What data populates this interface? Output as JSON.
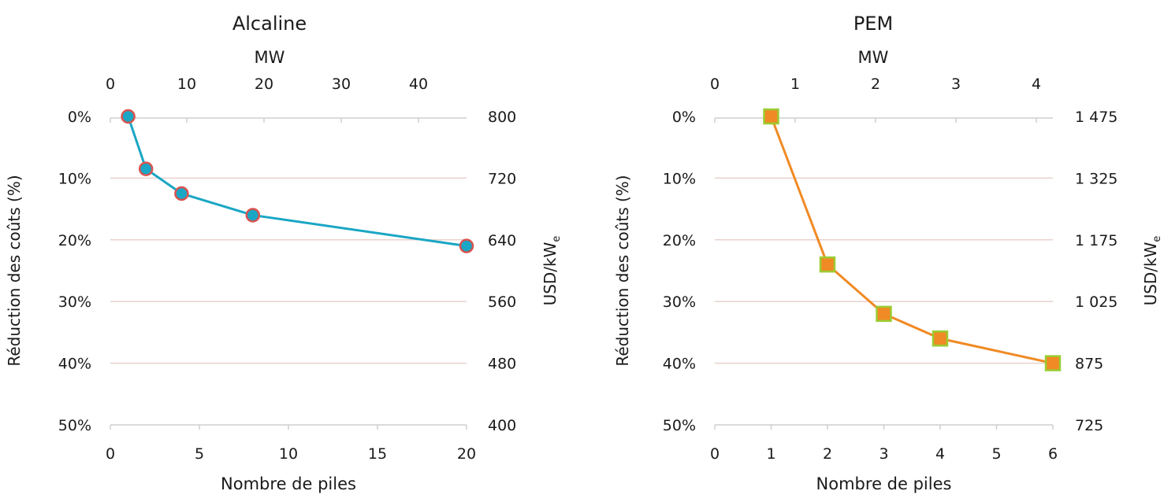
{
  "chart_data": [
    {
      "type": "line",
      "title": "Alcaline",
      "xlabel": "Nombre de piles",
      "xlim": [
        0,
        20
      ],
      "x_ticks": [
        "0",
        "5",
        "10",
        "15",
        "20"
      ],
      "top_axis_label": "MW",
      "top_axis_ticks": [
        "0",
        "10",
        "20",
        "30",
        "40"
      ],
      "ylabel": "Réduction des coûts (%)",
      "y_ticks": [
        "0%",
        "10%",
        "20%",
        "30%",
        "40%",
        "50%"
      ],
      "ylim": [
        0,
        50
      ],
      "y_inverted": true,
      "right_axis_label": "USD/kW",
      "right_axis_label_sub": "e",
      "right_axis_ticks": [
        "800",
        "720",
        "640",
        "560",
        "480",
        "400"
      ],
      "grid": "horizontal",
      "line_color": "#1aa6c4",
      "marker": "circle",
      "marker_edge_color": "#d9534f",
      "series": [
        {
          "x": [
            1,
            2,
            4,
            8,
            20
          ],
          "values": [
            0,
            8.5,
            12.5,
            16,
            21
          ]
        }
      ]
    },
    {
      "type": "line",
      "title": "PEM",
      "xlabel": "Nombre de piles",
      "xlim": [
        0,
        6
      ],
      "x_ticks": [
        "0",
        "1",
        "2",
        "3",
        "4",
        "5",
        "6"
      ],
      "top_axis_label": "MW",
      "top_axis_ticks": [
        "0",
        "1",
        "2",
        "3",
        "4"
      ],
      "ylabel": "Réduction des coûts (%)",
      "y_ticks": [
        "0%",
        "10%",
        "20%",
        "30%",
        "40%",
        "50%"
      ],
      "ylim": [
        0,
        50
      ],
      "y_inverted": true,
      "right_axis_label": "USD/kW",
      "right_axis_label_sub": "e",
      "right_axis_ticks": [
        "1 475",
        "1 325",
        "1 175",
        "1 025",
        "875",
        "725"
      ],
      "grid": "horizontal",
      "line_color": "#f08a24",
      "marker": "square",
      "marker_edge_color": "#9acd32",
      "series": [
        {
          "x": [
            1,
            2,
            3,
            4,
            6
          ],
          "values": [
            0,
            24,
            32,
            36,
            40
          ]
        }
      ]
    }
  ]
}
